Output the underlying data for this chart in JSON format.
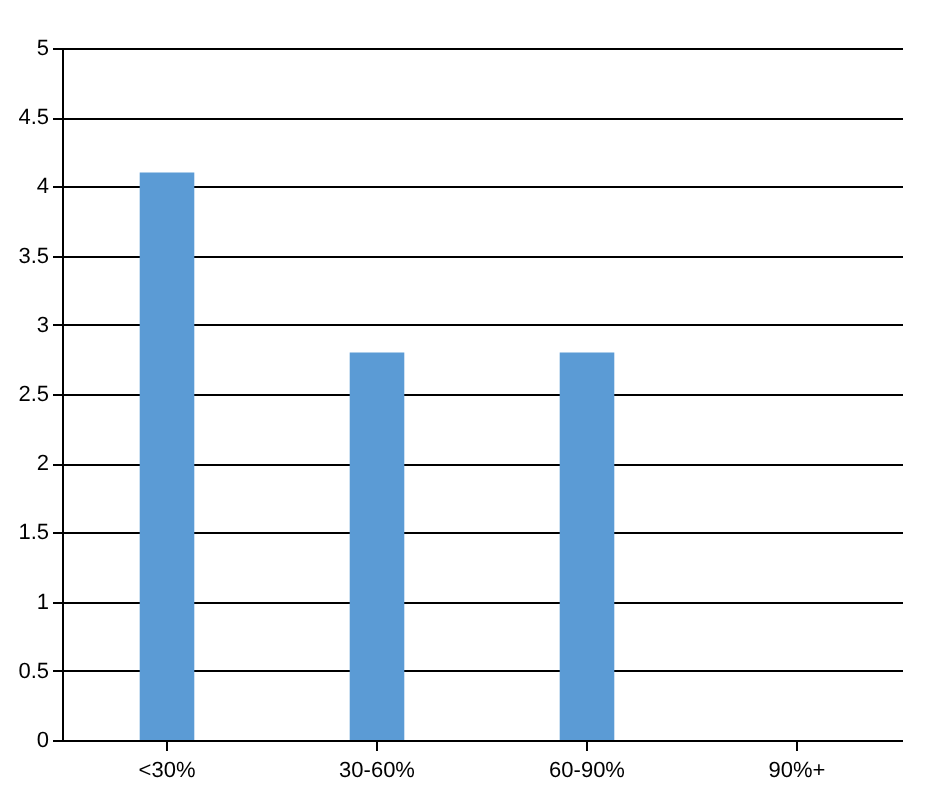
{
  "chart_data": {
    "type": "bar",
    "categories": [
      "<30%",
      "30-60%",
      "60-90%",
      "90%+"
    ],
    "values": [
      4.1,
      2.8,
      2.8,
      0
    ],
    "color": "#5b9bd5",
    "ylim": [
      0,
      5
    ],
    "yticks": [
      0,
      0.5,
      1,
      1.5,
      2,
      2.5,
      3,
      3.5,
      4,
      4.5,
      5
    ],
    "grid": "y"
  }
}
